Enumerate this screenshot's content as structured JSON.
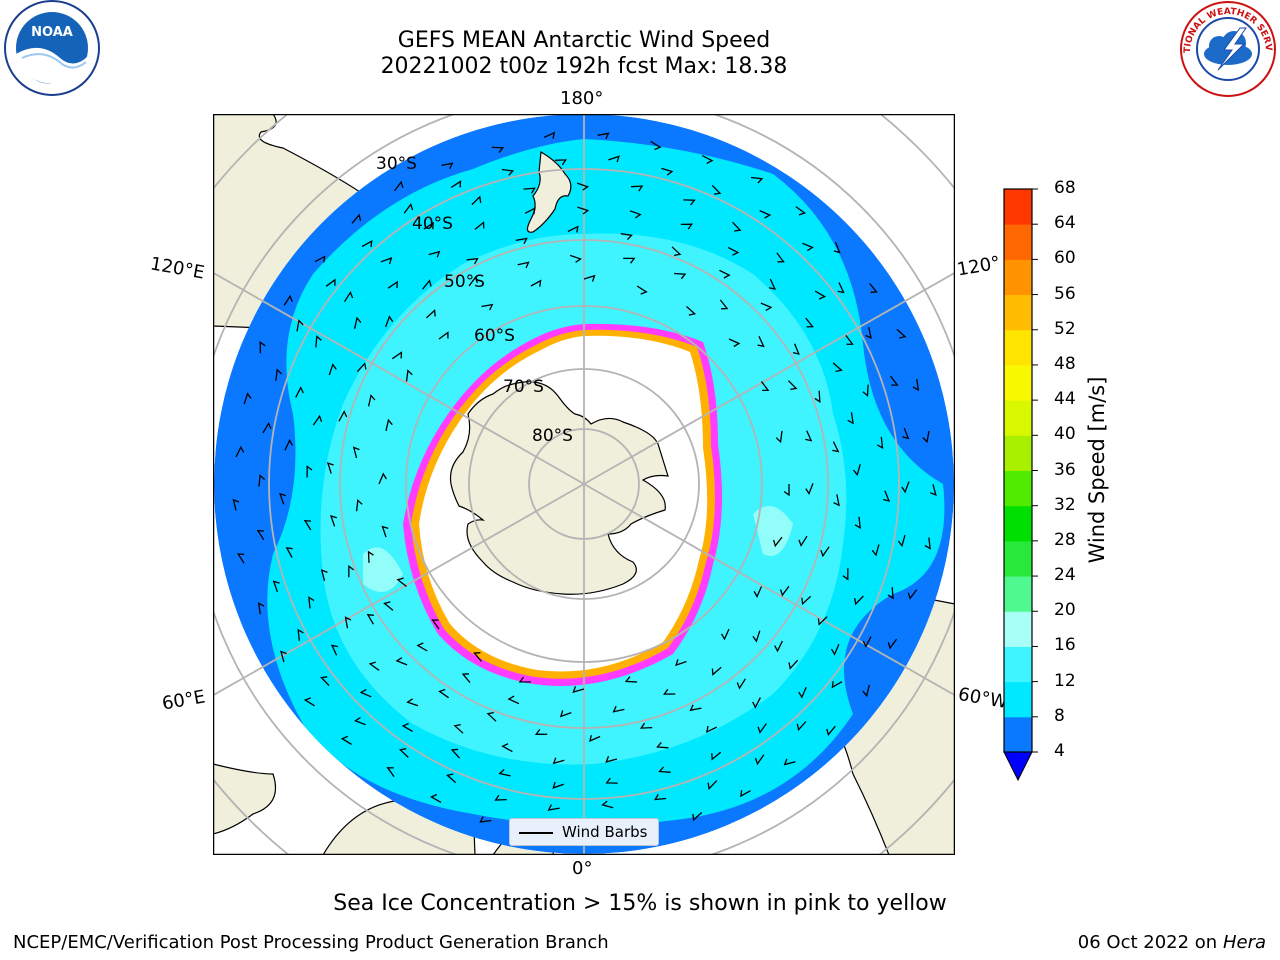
{
  "title_line1": "GEFS MEAN Antarctic Wind Speed",
  "title_line2": "20221002 t00z 192h fcst   Max: 18.38",
  "note": "Sea Ice Concentration > 15% is shown in pink to yellow",
  "footer_left": "NCEP/EMC/Verification Post Processing Product Generation Branch",
  "footer_right_date": "06 Oct 2022 on ",
  "footer_right_host": "Hera",
  "legend_label": "Wind Barbs",
  "colorbar": {
    "label": "Wind Speed [m/s]",
    "ticks": [
      "4",
      "8",
      "12",
      "16",
      "20",
      "24",
      "28",
      "32",
      "36",
      "40",
      "44",
      "48",
      "52",
      "56",
      "60",
      "64",
      "68"
    ],
    "colors": [
      "#0a78ff",
      "#00e8ff",
      "#3ff4ff",
      "#a8fff8",
      "#50f890",
      "#28e83c",
      "#00e000",
      "#50ec00",
      "#a8f000",
      "#d8f800",
      "#f8f800",
      "#ffe400",
      "#ffbc00",
      "#ff9400",
      "#ff6800",
      "#ff3800"
    ],
    "under_color": "#0000ff"
  },
  "map": {
    "longitude_labels": [
      "180°",
      "120°E",
      "120°",
      "60°E",
      "60°W",
      "0°"
    ],
    "latitude_labels": [
      "30°S",
      "40°S",
      "50°S",
      "60°S",
      "70°S",
      "80°S"
    ],
    "projection": "south-polar-stereographic",
    "land_color": "#efefdb",
    "ice_colors": [
      "#ff3cff",
      "#ffb000"
    ]
  },
  "logos": {
    "left": "NOAA",
    "right": "NATIONAL WEATHER SERVICE"
  }
}
